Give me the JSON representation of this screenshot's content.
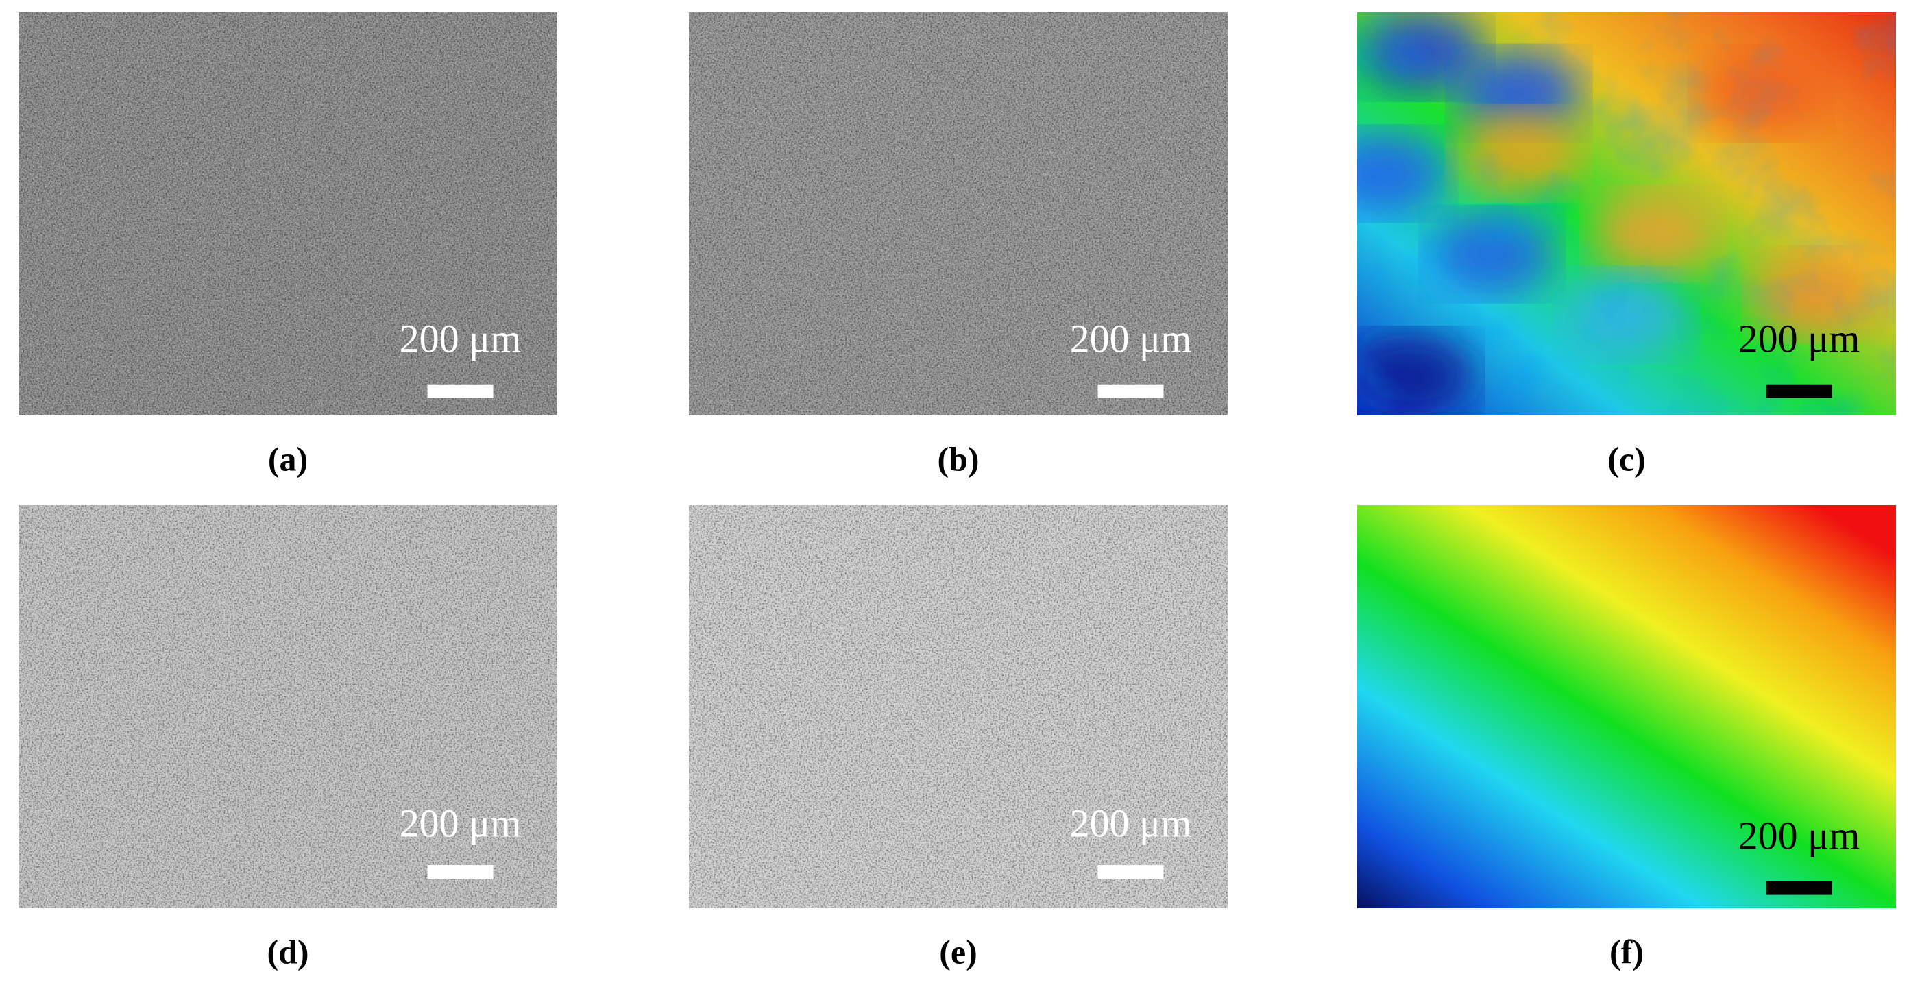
{
  "panels": [
    {
      "scale_label": "200 μm",
      "caption": "(a)"
    },
    {
      "scale_label": "200 μm",
      "caption": "(b)"
    },
    {
      "scale_label": "200 μm",
      "caption": "(c)"
    },
    {
      "scale_label": "200 μm",
      "caption": "(d)"
    },
    {
      "scale_label": "200 μm",
      "caption": "(e)"
    },
    {
      "scale_label": "200 μm",
      "caption": "(f)"
    }
  ]
}
